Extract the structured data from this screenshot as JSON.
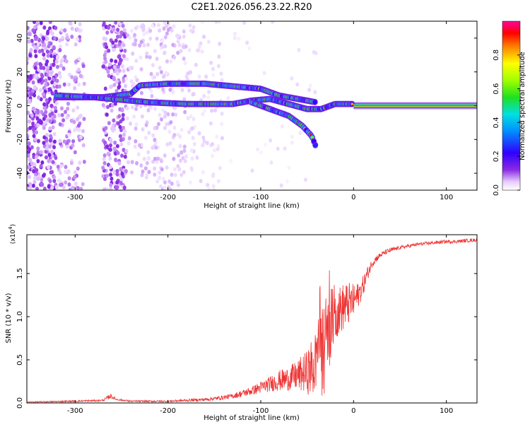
{
  "chart_data": [
    {
      "type": "heatmap",
      "title": "C2E1.2026.056.23.22.R20",
      "xlabel": "Height of straight line (km)",
      "ylabel": "Frequency (Hz)",
      "xlim": [
        -352,
        133
      ],
      "ylim": [
        -50,
        50
      ],
      "xticks": [
        "-300",
        "-200",
        "-100",
        "0",
        "100"
      ],
      "xtick_values": [
        -300,
        -200,
        -100,
        0,
        100
      ],
      "yticks": [
        "40",
        "20",
        "0",
        "-20",
        "-40"
      ],
      "ytick_values": [
        40,
        20,
        0,
        -20,
        -40
      ],
      "colorbar": {
        "label": "Normalized spectral amplitude",
        "range": [
          0,
          1
        ],
        "ticks": [
          "0.0",
          "0.2",
          "0.4",
          "0.6",
          "0.8"
        ],
        "tick_values": [
          0,
          0.2,
          0.4,
          0.6,
          0.8
        ]
      },
      "tracks": [
        {
          "name": "upper",
          "points": [
            [
              -320,
              5
            ],
            [
              -270,
              5
            ],
            [
              -240,
              7
            ],
            [
              -230,
              12
            ],
            [
              -200,
              13
            ],
            [
              -160,
              13
            ],
            [
              -140,
              12
            ],
            [
              -120,
              11
            ],
            [
              -100,
              10
            ],
            [
              -80,
              6
            ],
            [
              -60,
              4
            ],
            [
              -40,
              2
            ]
          ]
        },
        {
          "name": "middle",
          "points": [
            [
              -320,
              6
            ],
            [
              -280,
              5
            ],
            [
              -260,
              4
            ],
            [
              -220,
              2
            ],
            [
              -180,
              1
            ],
            [
              -130,
              1
            ],
            [
              -110,
              3
            ],
            [
              -90,
              4
            ],
            [
              -70,
              1
            ],
            [
              -50,
              -2
            ],
            [
              -35,
              -2
            ],
            [
              -20,
              1
            ],
            [
              0,
              1
            ]
          ]
        },
        {
          "name": "branch",
          "points": [
            [
              -110,
              2
            ],
            [
              -90,
              -2
            ],
            [
              -70,
              -6
            ],
            [
              -55,
              -12
            ],
            [
              -45,
              -18
            ],
            [
              -40,
              -25
            ]
          ]
        },
        {
          "name": "line",
          "points": [
            [
              0,
              0
            ],
            [
              133,
              0
            ]
          ]
        }
      ]
    },
    {
      "type": "line",
      "title": "",
      "xlabel": "Height of straight line (km)",
      "ylabel": "SNR (10 * v/v)",
      "yscale_label": "(x10",
      "yscale_exponent": "4",
      "xlim": [
        -352,
        133
      ],
      "ylim": [
        0,
        1.95
      ],
      "xticks": [
        "-300",
        "-200",
        "-100",
        "0",
        "100"
      ],
      "xtick_values": [
        -300,
        -200,
        -100,
        0,
        100
      ],
      "yticks": [
        "0.0",
        "0.5",
        "1.0",
        "1.5"
      ],
      "ytick_values": [
        0,
        0.5,
        1.0,
        1.5
      ],
      "color": "#ee3333",
      "series": [
        {
          "name": "SNR",
          "x": [
            -352,
            -300,
            -270,
            -262,
            -255,
            -240,
            -200,
            -160,
            -150,
            -130,
            -110,
            -100,
            -90,
            -80,
            -70,
            -60,
            -50,
            -45,
            -40,
            -35,
            -30,
            -26,
            -22,
            -18,
            -15,
            -10,
            -5,
            0,
            5,
            10,
            15,
            20,
            25,
            30,
            35,
            40,
            50,
            60,
            70,
            80,
            90,
            100,
            110,
            120,
            133
          ],
          "values": [
            0.01,
            0.02,
            0.03,
            0.08,
            0.04,
            0.02,
            0.02,
            0.04,
            0.05,
            0.08,
            0.14,
            0.18,
            0.22,
            0.26,
            0.28,
            0.32,
            0.36,
            0.4,
            0.46,
            0.55,
            0.7,
            0.85,
            1.0,
            1.05,
            1.08,
            1.12,
            1.15,
            1.18,
            1.25,
            1.35,
            1.5,
            1.62,
            1.68,
            1.72,
            1.75,
            1.77,
            1.8,
            1.82,
            1.84,
            1.85,
            1.86,
            1.87,
            1.87,
            1.88,
            1.89
          ],
          "noise_amplitude": [
            0.005,
            0.01,
            0.01,
            0.03,
            0.01,
            0.01,
            0.01,
            0.02,
            0.02,
            0.03,
            0.05,
            0.07,
            0.09,
            0.12,
            0.14,
            0.18,
            0.25,
            0.35,
            0.45,
            0.55,
            0.55,
            0.5,
            0.35,
            0.3,
            0.28,
            0.28,
            0.25,
            0.2,
            0.15,
            0.12,
            0.08,
            0.05,
            0.04,
            0.03,
            0.03,
            0.03,
            0.02,
            0.02,
            0.02,
            0.02,
            0.02,
            0.02,
            0.02,
            0.02,
            0.02
          ]
        }
      ]
    }
  ]
}
